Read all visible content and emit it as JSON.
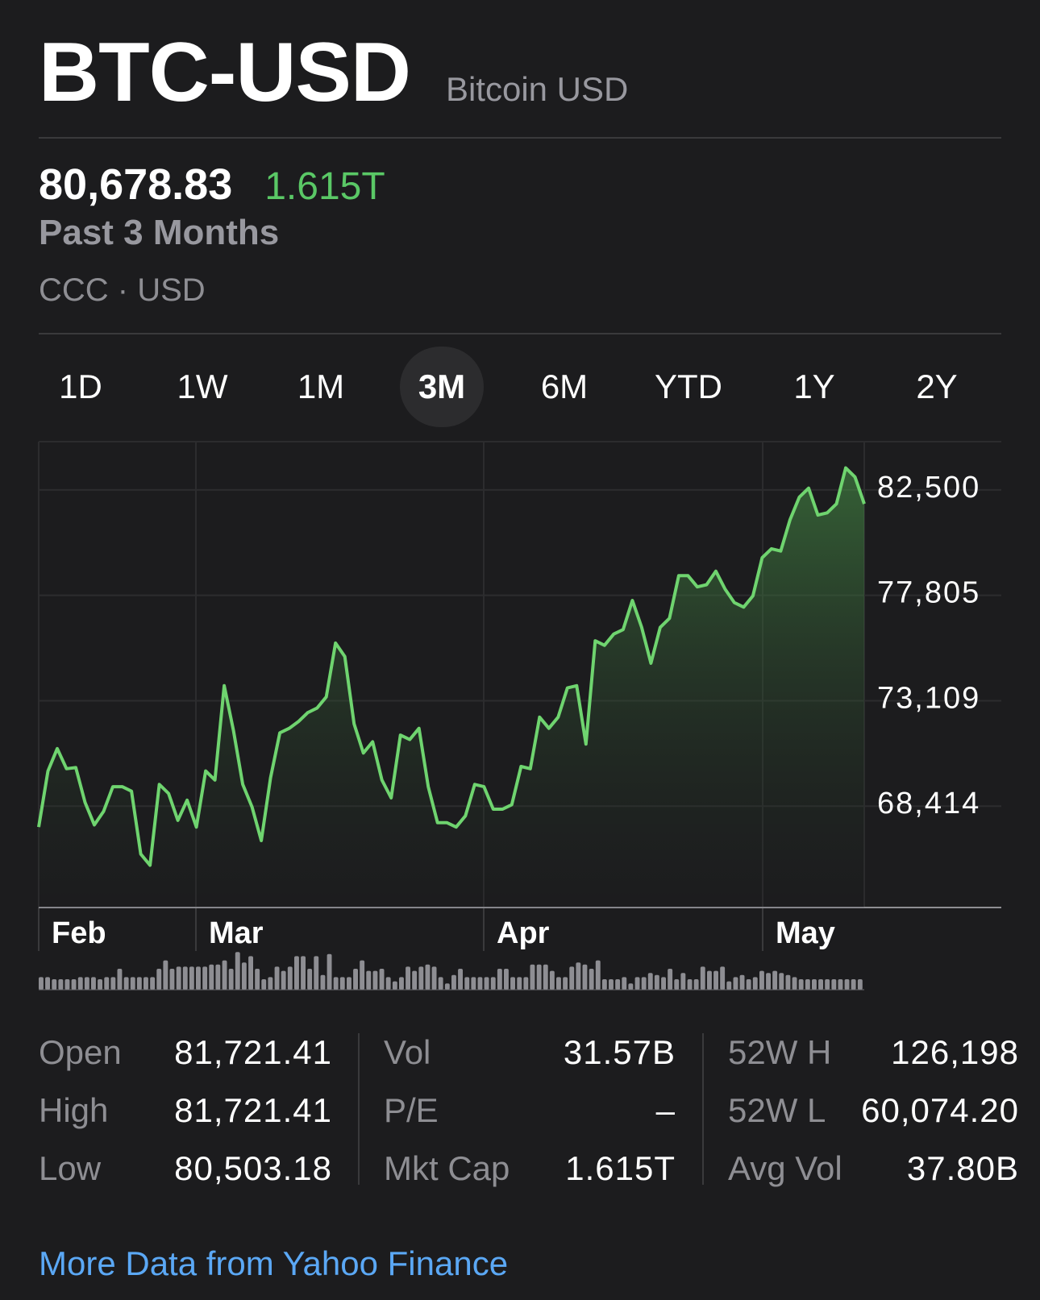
{
  "header": {
    "ticker": "BTC-USD",
    "company": "Bitcoin USD"
  },
  "quote": {
    "price": "80,678.83",
    "change": "1.615T",
    "period": "Past 3 Months",
    "exchange": "CCC · USD"
  },
  "ranges": [
    {
      "label": "1D",
      "active": false
    },
    {
      "label": "1W",
      "active": false
    },
    {
      "label": "1M",
      "active": false
    },
    {
      "label": "3M",
      "active": true
    },
    {
      "label": "6M",
      "active": false
    },
    {
      "label": "YTD",
      "active": false
    },
    {
      "label": "1Y",
      "active": false
    },
    {
      "label": "2Y",
      "active": false
    }
  ],
  "colors": {
    "line": "#6fd46f",
    "accent_green": "#5ac866",
    "link": "#5ba8f5",
    "background": "#1c1c1e"
  },
  "chart_data": {
    "type": "area",
    "y_ticks": [
      "82,500",
      "77,805",
      "73,109",
      "68,414"
    ],
    "y_tick_values": [
      82500,
      77805,
      73109,
      68414
    ],
    "ylim": [
      63718,
      84400
    ],
    "x_labels": [
      "Feb",
      "Mar",
      "Apr",
      "May"
    ],
    "grid": true,
    "values": [
      67300,
      69800,
      70800,
      69900,
      69950,
      68400,
      67400,
      68000,
      69100,
      69100,
      68900,
      66100,
      65600,
      69200,
      68800,
      67600,
      68500,
      67300,
      69800,
      69400,
      73600,
      71600,
      69200,
      68200,
      66700,
      69500,
      71500,
      71700,
      72000,
      72400,
      72600,
      73100,
      75500,
      74900,
      71900,
      70600,
      71100,
      69400,
      68600,
      71400,
      71200,
      71700,
      69100,
      67500,
      67500,
      67300,
      67800,
      69200,
      69100,
      68100,
      68100,
      68300,
      70000,
      69900,
      72200,
      71700,
      72200,
      73500,
      73600,
      71000,
      75600,
      75400,
      75900,
      76100,
      77400,
      76200,
      74600,
      76200,
      76600,
      78500,
      78500,
      78000,
      78100,
      78700,
      77900,
      77300,
      77100,
      77600,
      79300,
      79700,
      79600,
      81000,
      82000,
      82400,
      81200,
      81300,
      81700,
      83300,
      82900,
      81700
    ]
  },
  "volume_bars": [
    6,
    6,
    5,
    5,
    5,
    5,
    6,
    6,
    6,
    5,
    6,
    6,
    10,
    6,
    6,
    6,
    6,
    6,
    10,
    14,
    10,
    11,
    11,
    11,
    11,
    11,
    12,
    12,
    14,
    10,
    18,
    13,
    16,
    10,
    5,
    6,
    11,
    9,
    11,
    16,
    16,
    10,
    16,
    7,
    17,
    6,
    6,
    6,
    10,
    14,
    9,
    9,
    10,
    6,
    4,
    6,
    11,
    9,
    11,
    12,
    11,
    6,
    3,
    7,
    10,
    6,
    6,
    6,
    6,
    6,
    10,
    10,
    6,
    6,
    6,
    12,
    12,
    12,
    9,
    6,
    6,
    11,
    13,
    12,
    10,
    14,
    5,
    5,
    5,
    6,
    3,
    6,
    6,
    8,
    7,
    6,
    10,
    5,
    8,
    5,
    5,
    11,
    9,
    9,
    11,
    4,
    6,
    7,
    5,
    6,
    9,
    8,
    9,
    8,
    7,
    6,
    5,
    5,
    5,
    5,
    5,
    5,
    5,
    5,
    5,
    5
  ],
  "stats": {
    "col1": [
      {
        "label": "Open",
        "value": "81,721.41"
      },
      {
        "label": "High",
        "value": "81,721.41"
      },
      {
        "label": "Low",
        "value": "80,503.18"
      }
    ],
    "col2": [
      {
        "label": "Vol",
        "value": "31.57B"
      },
      {
        "label": "P/E",
        "value": "–"
      },
      {
        "label": "Mkt Cap",
        "value": "1.615T"
      }
    ],
    "col3": [
      {
        "label": "52W H",
        "value": "126,198"
      },
      {
        "label": "52W L",
        "value": "60,074.20"
      },
      {
        "label": "Avg Vol",
        "value": "37.80B"
      }
    ]
  },
  "footer": {
    "more_link": "More Data from Yahoo Finance"
  }
}
